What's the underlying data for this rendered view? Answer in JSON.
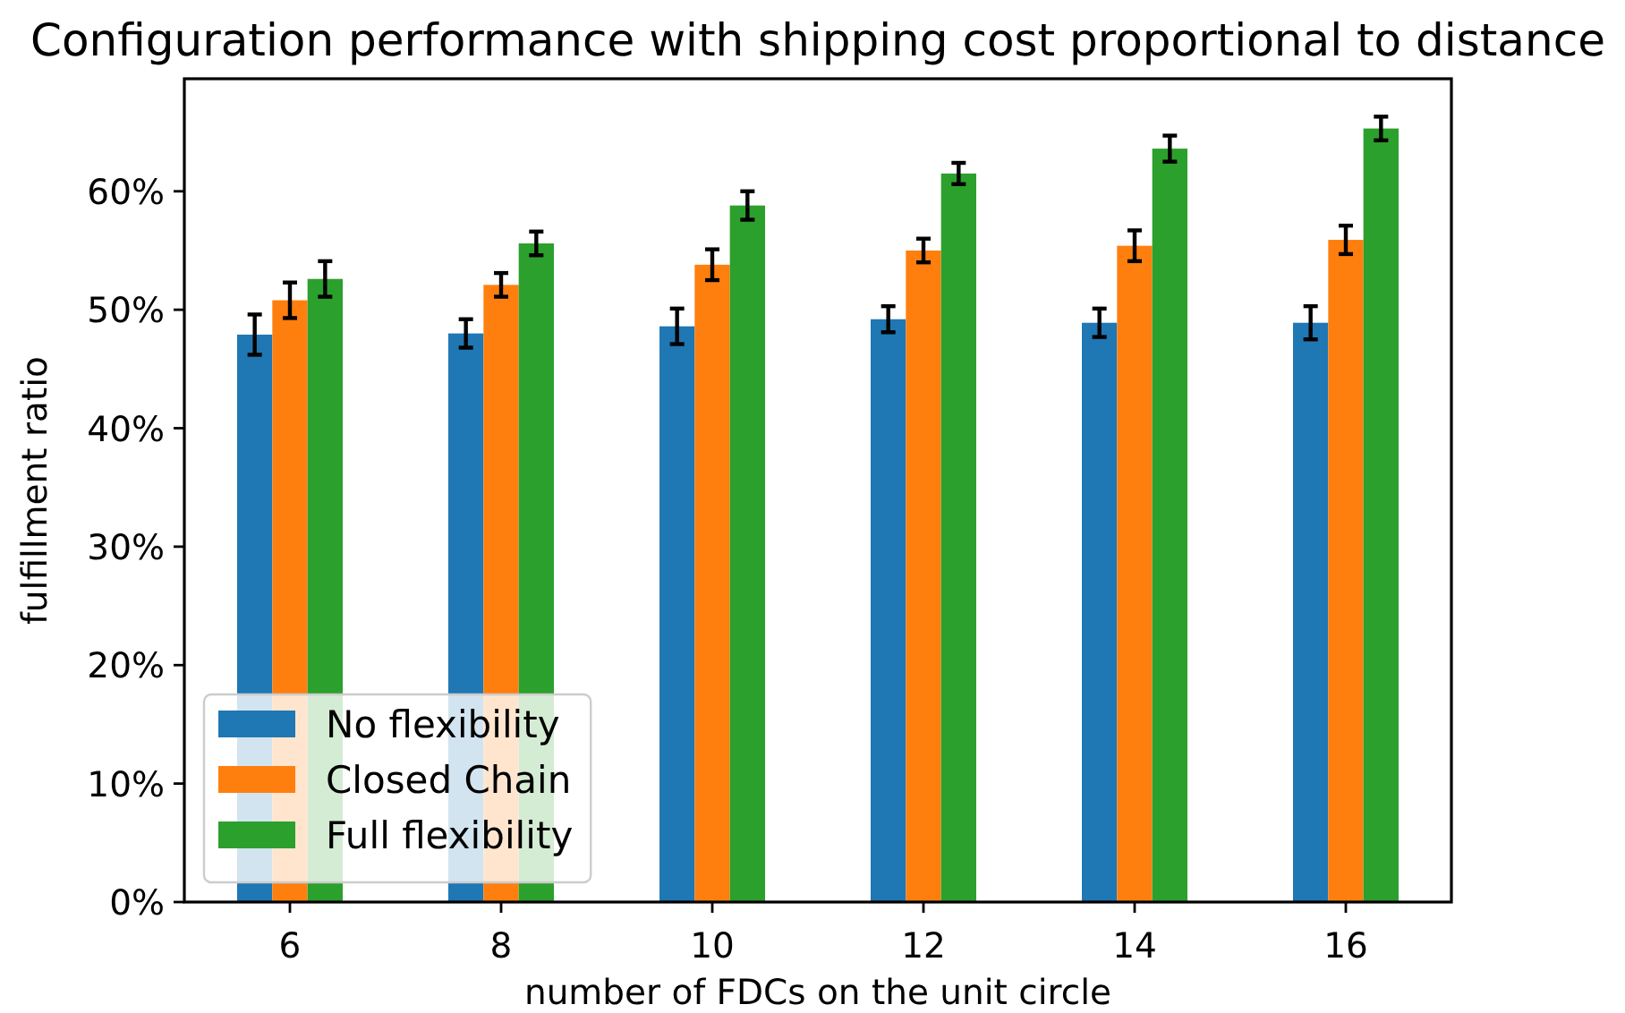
{
  "chart_data": {
    "type": "bar",
    "title": "Configuration performance with shipping cost proportional to distance",
    "xlabel": "number of FDCs on the unit circle",
    "ylabel": "fulfillment ratio",
    "categories": [
      "6",
      "8",
      "10",
      "12",
      "14",
      "16"
    ],
    "series": [
      {
        "name": "No flexibility",
        "color": "#1f77b4",
        "values": [
          47.9,
          48.0,
          48.6,
          49.2,
          48.9,
          48.9
        ],
        "errors": [
          1.7,
          1.2,
          1.5,
          1.1,
          1.2,
          1.4
        ]
      },
      {
        "name": "Closed Chain",
        "color": "#ff7f0e",
        "values": [
          50.8,
          52.1,
          53.8,
          55.0,
          55.4,
          55.9
        ],
        "errors": [
          1.5,
          1.0,
          1.3,
          1.0,
          1.3,
          1.2
        ]
      },
      {
        "name": "Full flexibility",
        "color": "#2ca02c",
        "values": [
          52.6,
          55.6,
          58.8,
          61.5,
          63.6,
          65.3
        ],
        "errors": [
          1.5,
          1.0,
          1.2,
          0.9,
          1.1,
          1.0
        ]
      }
    ],
    "ylim": [
      0,
      69.5
    ],
    "yticks": [
      {
        "value": 0,
        "label": "0%"
      },
      {
        "value": 10,
        "label": "10%"
      },
      {
        "value": 20,
        "label": "20%"
      },
      {
        "value": 30,
        "label": "30%"
      },
      {
        "value": 40,
        "label": "40%"
      },
      {
        "value": 50,
        "label": "50%"
      },
      {
        "value": 60,
        "label": "60%"
      }
    ],
    "legend": "bottom left"
  }
}
